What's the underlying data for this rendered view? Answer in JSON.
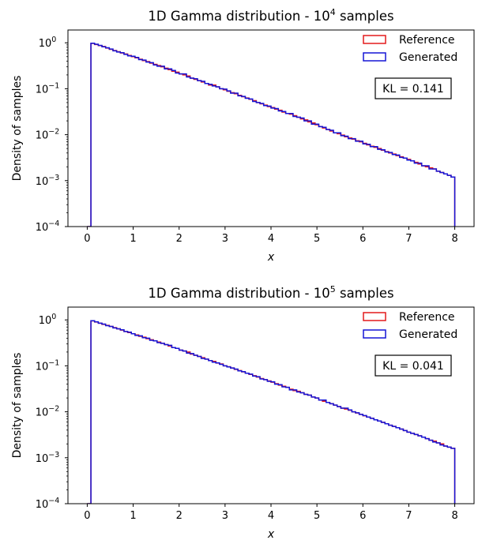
{
  "chart_data": [
    {
      "type": "histogram-step",
      "title": "1D Gamma distribution - 10",
      "title_sup": "4",
      "title_suffix": " samples",
      "xlabel": "x",
      "ylabel": "Density of samples",
      "xlim": [
        -0.42,
        8.42
      ],
      "ylim": [
        0.0001,
        1.9
      ],
      "yscale": "log",
      "xticks": [
        "0",
        "1",
        "2",
        "3",
        "4",
        "5",
        "6",
        "7",
        "8"
      ],
      "yticks": [
        {
          "base": "10",
          "exp": "0"
        },
        {
          "base": "10",
          "exp": "-1"
        },
        {
          "base": "10",
          "exp": "-2"
        },
        {
          "base": "10",
          "exp": "-3"
        },
        {
          "base": "10",
          "exp": "-4"
        }
      ],
      "legend": {
        "placement": "top-right",
        "entries": [
          "Reference",
          "Generated"
        ]
      },
      "annotation": "KL = 0.141",
      "bin_width": 0.08,
      "series": [
        {
          "name": "Reference",
          "color": "#e31a1c",
          "values": [
            0.0001,
            0.97,
            0.92,
            0.87,
            0.83,
            0.77,
            0.72,
            0.68,
            0.64,
            0.6,
            0.57,
            0.53,
            0.5,
            0.47,
            0.44,
            0.41,
            0.39,
            0.36,
            0.34,
            0.32,
            0.3,
            0.28,
            0.26,
            0.24,
            0.23,
            0.21,
            0.2,
            0.19,
            0.17,
            0.16,
            0.15,
            0.14,
            0.13,
            0.12,
            0.12,
            0.11,
            0.1,
            0.095,
            0.088,
            0.082,
            0.078,
            0.072,
            0.067,
            0.063,
            0.059,
            0.055,
            0.05,
            0.047,
            0.044,
            0.041,
            0.039,
            0.036,
            0.034,
            0.031,
            0.029,
            0.028,
            0.026,
            0.024,
            0.022,
            0.021,
            0.019,
            0.018,
            0.0165,
            0.015,
            0.014,
            0.013,
            0.012,
            0.011,
            0.0105,
            0.0098,
            0.009,
            0.0085,
            0.008,
            0.0074,
            0.007,
            0.0065,
            0.006,
            0.0056,
            0.0053,
            0.005,
            0.0046,
            0.0043,
            0.004,
            0.0038,
            0.0035,
            0.0033,
            0.0031,
            0.0029,
            0.0027,
            0.0025,
            0.0023,
            0.0021,
            0.002,
            0.0019,
            0.0018,
            0.0016,
            0.0015,
            0.0014,
            0.0013,
            0.0012
          ]
        },
        {
          "name": "Generated",
          "color": "#1515d6",
          "values": [
            0.0001,
            0.98,
            0.93,
            0.88,
            0.82,
            0.78,
            0.73,
            0.67,
            0.63,
            0.61,
            0.56,
            0.52,
            0.51,
            0.48,
            0.43,
            0.42,
            0.38,
            0.37,
            0.33,
            0.31,
            0.31,
            0.27,
            0.27,
            0.25,
            0.22,
            0.21,
            0.21,
            0.18,
            0.17,
            0.165,
            0.15,
            0.145,
            0.13,
            0.125,
            0.115,
            0.11,
            0.1,
            0.098,
            0.09,
            0.08,
            0.08,
            0.07,
            0.068,
            0.062,
            0.06,
            0.053,
            0.05,
            0.048,
            0.043,
            0.042,
            0.038,
            0.037,
            0.033,
            0.032,
            0.029,
            0.029,
            0.025,
            0.024,
            0.023,
            0.02,
            0.02,
            0.017,
            0.017,
            0.015,
            0.0145,
            0.013,
            0.0125,
            0.011,
            0.011,
            0.0095,
            0.0093,
            0.0082,
            0.0082,
            0.0072,
            0.0072,
            0.0063,
            0.0062,
            0.0055,
            0.0055,
            0.0048,
            0.0047,
            0.0042,
            0.0041,
            0.0037,
            0.0036,
            0.0032,
            0.0031,
            0.0028,
            0.0027,
            0.0024,
            0.0024,
            0.0021,
            0.0021,
            0.0018,
            0.0018,
            0.0016,
            0.0015,
            0.0014,
            0.0013,
            0.0012
          ]
        }
      ]
    },
    {
      "type": "histogram-step",
      "title": "1D Gamma distribution - 10",
      "title_sup": "5",
      "title_suffix": " samples",
      "xlabel": "x",
      "ylabel": "Density of samples",
      "xlim": [
        -0.42,
        8.42
      ],
      "ylim": [
        0.0001,
        1.9
      ],
      "yscale": "log",
      "xticks": [
        "0",
        "1",
        "2",
        "3",
        "4",
        "5",
        "6",
        "7",
        "8"
      ],
      "yticks": [
        {
          "base": "10",
          "exp": "0"
        },
        {
          "base": "10",
          "exp": "-1"
        },
        {
          "base": "10",
          "exp": "-2"
        },
        {
          "base": "10",
          "exp": "-3"
        },
        {
          "base": "10",
          "exp": "-4"
        }
      ],
      "legend": {
        "placement": "top-right",
        "entries": [
          "Reference",
          "Generated"
        ]
      },
      "annotation": "KL = 0.041",
      "bin_width": 0.08,
      "series": [
        {
          "name": "Reference",
          "color": "#e31a1c",
          "values": [
            0.0001,
            0.95,
            0.9,
            0.85,
            0.8,
            0.76,
            0.72,
            0.68,
            0.64,
            0.6,
            0.56,
            0.53,
            0.5,
            0.47,
            0.44,
            0.42,
            0.39,
            0.37,
            0.35,
            0.33,
            0.31,
            0.29,
            0.27,
            0.25,
            0.24,
            0.22,
            0.21,
            0.2,
            0.18,
            0.17,
            0.16,
            0.15,
            0.14,
            0.13,
            0.125,
            0.115,
            0.11,
            0.1,
            0.096,
            0.09,
            0.084,
            0.079,
            0.074,
            0.069,
            0.065,
            0.061,
            0.057,
            0.053,
            0.05,
            0.047,
            0.044,
            0.041,
            0.038,
            0.036,
            0.034,
            0.031,
            0.029,
            0.028,
            0.026,
            0.024,
            0.023,
            0.021,
            0.02,
            0.018,
            0.017,
            0.016,
            0.015,
            0.014,
            0.013,
            0.012,
            0.0115,
            0.0108,
            0.01,
            0.0094,
            0.0088,
            0.0082,
            0.0077,
            0.0072,
            0.0067,
            0.0063,
            0.0059,
            0.0055,
            0.0051,
            0.0048,
            0.0045,
            0.0042,
            0.0039,
            0.0036,
            0.0034,
            0.0032,
            0.003,
            0.0028,
            0.0026,
            0.0024,
            0.0023,
            0.0021,
            0.002,
            0.0018,
            0.0017,
            0.0016
          ]
        },
        {
          "name": "Generated",
          "color": "#1515d6",
          "values": [
            0.0001,
            0.96,
            0.91,
            0.85,
            0.81,
            0.75,
            0.72,
            0.67,
            0.64,
            0.61,
            0.56,
            0.54,
            0.5,
            0.46,
            0.45,
            0.41,
            0.4,
            0.36,
            0.35,
            0.32,
            0.31,
            0.29,
            0.28,
            0.25,
            0.24,
            0.22,
            0.21,
            0.19,
            0.185,
            0.17,
            0.16,
            0.145,
            0.14,
            0.13,
            0.12,
            0.116,
            0.108,
            0.1,
            0.095,
            0.09,
            0.085,
            0.078,
            0.075,
            0.069,
            0.066,
            0.06,
            0.058,
            0.052,
            0.05,
            0.046,
            0.045,
            0.04,
            0.039,
            0.035,
            0.034,
            0.03,
            0.03,
            0.027,
            0.026,
            0.024,
            0.023,
            0.021,
            0.02,
            0.018,
            0.018,
            0.016,
            0.015,
            0.014,
            0.013,
            0.012,
            0.012,
            0.011,
            0.01,
            0.0095,
            0.0088,
            0.0083,
            0.0077,
            0.0072,
            0.0067,
            0.0063,
            0.0059,
            0.0055,
            0.0051,
            0.0048,
            0.0045,
            0.0042,
            0.0039,
            0.0036,
            0.0034,
            0.0032,
            0.003,
            0.0028,
            0.0026,
            0.0024,
            0.0022,
            0.0021,
            0.0019,
            0.0018,
            0.0017,
            0.0016
          ]
        }
      ]
    }
  ]
}
